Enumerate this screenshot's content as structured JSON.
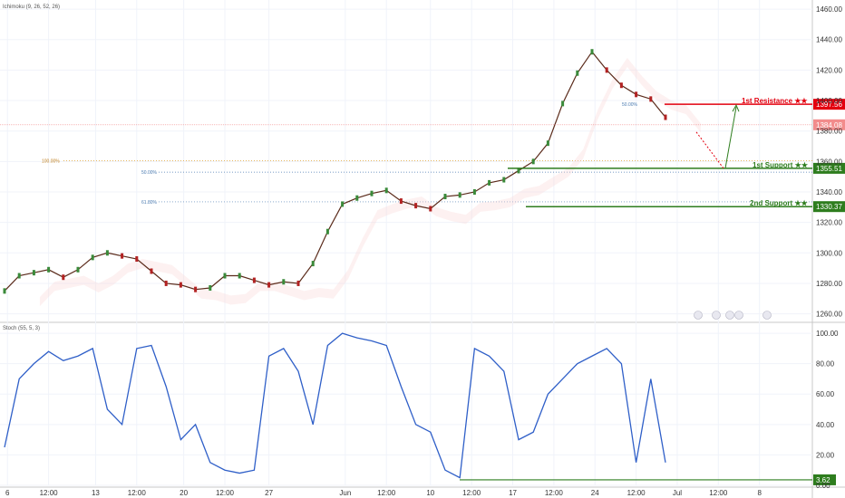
{
  "indicators": {
    "main": "Ichimoku (9, 26, 52, 26)",
    "sub": "Stoch (55, 5, 3)"
  },
  "price_axis": {
    "ticks": [
      1260,
      1280,
      1300,
      1320,
      1340,
      1360,
      1380,
      1400,
      1420,
      1440,
      1460
    ],
    "labels": [
      "1260.00",
      "1280.00",
      "1300.00",
      "1320.00",
      "1340.00",
      "1360.00",
      "1380.00",
      "1400.00",
      "1420.00",
      "1440.00",
      "1460.00"
    ]
  },
  "stoch_axis": {
    "ticks": [
      0,
      20,
      40,
      60,
      80,
      100
    ],
    "labels": [
      "0.00",
      "20.00",
      "40.00",
      "60.00",
      "80.00",
      "100.00"
    ]
  },
  "time_axis": {
    "labels": [
      "6",
      "12:00",
      "13",
      "12:00",
      "20",
      "12:00",
      "27",
      "Jun",
      "12:00",
      "10",
      "12:00",
      "17",
      "12:00",
      "24",
      "12:00",
      "Jul",
      "12:00",
      "8"
    ],
    "positions": [
      0.1,
      1.5,
      3.1,
      4.5,
      6.1,
      7.5,
      9.0,
      11.6,
      13.0,
      14.5,
      15.9,
      17.3,
      18.7,
      20.1,
      21.5,
      22.9,
      24.3,
      25.7
    ]
  },
  "markers": {
    "resistance": {
      "label": "1st Resistance ★★",
      "price": 1397.56,
      "value_label": "1397.56",
      "color": "#e3000f"
    },
    "support1": {
      "label": "1st Support ★★",
      "price": 1355.51,
      "value_label": "1355.51",
      "color": "#2e7d1e"
    },
    "support2": {
      "label": "2nd Support ★★",
      "price": 1330.37,
      "value_label": "1330.37",
      "color": "#2e7d1e"
    },
    "current": {
      "price": 1384.08,
      "value_label": "1384.08",
      "color": "#f28c8c"
    },
    "stoch_level": {
      "value": 3.62,
      "value_label": "3.62",
      "color": "#2e7d1e"
    }
  },
  "fib": {
    "level_100": {
      "label": "100.00%",
      "price": 1360.5
    },
    "level_50": {
      "label": "50.00%",
      "price": 1353.0
    },
    "level_618": {
      "label": "61.80%",
      "price": 1333.5
    },
    "level_50_top": {
      "label": "50.00%",
      "price": 1397.56
    }
  },
  "chart_data": {
    "type": "line",
    "title": "",
    "price_ylim": [
      1255,
      1466
    ],
    "stoch_ylim": [
      0,
      106
    ],
    "grid": true,
    "price_series": {
      "name": "",
      "x": [
        0,
        0.5,
        1,
        1.5,
        2,
        2.5,
        3,
        3.5,
        4,
        4.5,
        5,
        5.5,
        6,
        6.5,
        7,
        7.5,
        8,
        8.5,
        9,
        9.5,
        10,
        10.5,
        11,
        11.5,
        12,
        12.5,
        13,
        13.5,
        14,
        14.5,
        15,
        15.5,
        16,
        16.5,
        17,
        17.5,
        18,
        18.5,
        19,
        19.5,
        20,
        20.5,
        21,
        21.5,
        22,
        22.5
      ],
      "y": [
        1275,
        1285,
        1287,
        1289,
        1284,
        1289,
        1297,
        1300,
        1298,
        1296,
        1288,
        1280,
        1279,
        1276,
        1277,
        1285,
        1285,
        1282,
        1279,
        1281,
        1280,
        1293,
        1314,
        1332,
        1336,
        1339,
        1341,
        1334,
        1331,
        1329,
        1337,
        1338,
        1340,
        1346,
        1348,
        1354,
        1360,
        1372,
        1398,
        1418,
        1432,
        1420,
        1410,
        1404,
        1401,
        1389
      ]
    },
    "stoch_series": {
      "name": "",
      "x": [
        0,
        0.5,
        1,
        1.5,
        2,
        2.5,
        3,
        3.5,
        4,
        4.5,
        5,
        5.5,
        6,
        6.5,
        7,
        7.5,
        8,
        8.5,
        9,
        9.5,
        10,
        10.5,
        11,
        11.5,
        12,
        12.5,
        13,
        13.5,
        14,
        14.5,
        15,
        15.5,
        16,
        16.5,
        17,
        17.5,
        18,
        18.5,
        19,
        19.5,
        20,
        20.5,
        21,
        21.5,
        22,
        22.5
      ],
      "y": [
        25,
        70,
        80,
        88,
        82,
        85,
        90,
        50,
        40,
        90,
        92,
        65,
        30,
        40,
        15,
        10,
        8,
        10,
        85,
        90,
        75,
        40,
        92,
        100,
        97,
        95,
        92,
        65,
        40,
        35,
        10,
        5,
        90,
        85,
        75,
        30,
        35,
        60,
        70,
        80,
        85,
        90,
        80,
        15,
        70,
        15
      ]
    }
  }
}
